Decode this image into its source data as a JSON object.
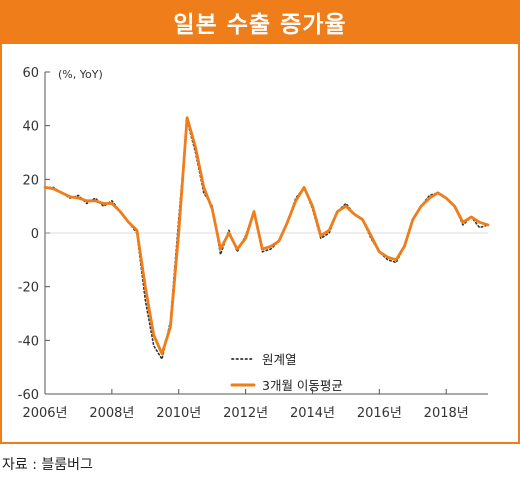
{
  "title": "일본 수출 증가율",
  "source": "자료 : 블룸버그",
  "chart_data": {
    "type": "line",
    "unit": "(%, YoY)",
    "ylim": [
      -60,
      60
    ],
    "yticks": [
      60,
      40,
      20,
      0,
      -20,
      -40,
      -60
    ],
    "xlim": [
      2006.0,
      2019.25
    ],
    "xticks": [
      {
        "value": 2006,
        "label": "2006년"
      },
      {
        "value": 2008,
        "label": "2008년"
      },
      {
        "value": 2010,
        "label": "2010년"
      },
      {
        "value": 2012,
        "label": "2012년"
      },
      {
        "value": 2014,
        "label": "2014년"
      },
      {
        "value": 2016,
        "label": "2016년"
      },
      {
        "value": 2018,
        "label": "2018년"
      }
    ],
    "grid": false,
    "legend_position": "bottom-center",
    "series": [
      {
        "name": "원계열",
        "style": "dotted",
        "color": "#333333",
        "points": [
          [
            2006.0,
            17
          ],
          [
            2006.25,
            17
          ],
          [
            2006.5,
            15
          ],
          [
            2006.75,
            13
          ],
          [
            2007.0,
            14
          ],
          [
            2007.25,
            11
          ],
          [
            2007.5,
            13
          ],
          [
            2007.75,
            10
          ],
          [
            2008.0,
            12
          ],
          [
            2008.25,
            8
          ],
          [
            2008.5,
            4
          ],
          [
            2008.75,
            0
          ],
          [
            2009.0,
            -25
          ],
          [
            2009.25,
            -42
          ],
          [
            2009.5,
            -47
          ],
          [
            2009.75,
            -33
          ],
          [
            2010.0,
            5
          ],
          [
            2010.25,
            42
          ],
          [
            2010.5,
            30
          ],
          [
            2010.75,
            15
          ],
          [
            2011.0,
            10
          ],
          [
            2011.25,
            -8
          ],
          [
            2011.5,
            1
          ],
          [
            2011.75,
            -7
          ],
          [
            2012.0,
            -1
          ],
          [
            2012.25,
            8
          ],
          [
            2012.5,
            -7
          ],
          [
            2012.75,
            -6
          ],
          [
            2013.0,
            -3
          ],
          [
            2013.25,
            4
          ],
          [
            2013.5,
            13
          ],
          [
            2013.75,
            17
          ],
          [
            2014.0,
            9
          ],
          [
            2014.25,
            -2
          ],
          [
            2014.5,
            0
          ],
          [
            2014.75,
            8
          ],
          [
            2015.0,
            11
          ],
          [
            2015.25,
            7
          ],
          [
            2015.5,
            5
          ],
          [
            2015.75,
            -2
          ],
          [
            2016.0,
            -7
          ],
          [
            2016.25,
            -10
          ],
          [
            2016.5,
            -11
          ],
          [
            2016.75,
            -5
          ],
          [
            2017.0,
            5
          ],
          [
            2017.25,
            10
          ],
          [
            2017.5,
            14
          ],
          [
            2017.75,
            15
          ],
          [
            2018.0,
            13
          ],
          [
            2018.25,
            10
          ],
          [
            2018.5,
            3
          ],
          [
            2018.75,
            6
          ],
          [
            2019.0,
            2
          ],
          [
            2019.25,
            3
          ]
        ]
      },
      {
        "name": "3개월 이동평균",
        "style": "solid",
        "color": "#ef7d1a",
        "points": [
          [
            2006.0,
            17
          ],
          [
            2006.25,
            16.5
          ],
          [
            2006.5,
            15
          ],
          [
            2006.75,
            13.5
          ],
          [
            2007.0,
            13
          ],
          [
            2007.25,
            12
          ],
          [
            2007.5,
            12
          ],
          [
            2007.75,
            11
          ],
          [
            2008.0,
            11
          ],
          [
            2008.25,
            8
          ],
          [
            2008.5,
            4
          ],
          [
            2008.75,
            1
          ],
          [
            2009.0,
            -20
          ],
          [
            2009.25,
            -38
          ],
          [
            2009.5,
            -45
          ],
          [
            2009.75,
            -35
          ],
          [
            2010.0,
            0
          ],
          [
            2010.25,
            43
          ],
          [
            2010.5,
            32
          ],
          [
            2010.75,
            17
          ],
          [
            2011.0,
            9
          ],
          [
            2011.25,
            -6
          ],
          [
            2011.5,
            0
          ],
          [
            2011.75,
            -6
          ],
          [
            2012.0,
            -2
          ],
          [
            2012.25,
            8
          ],
          [
            2012.5,
            -6
          ],
          [
            2012.75,
            -5
          ],
          [
            2013.0,
            -3
          ],
          [
            2013.25,
            4
          ],
          [
            2013.5,
            12
          ],
          [
            2013.75,
            17
          ],
          [
            2014.0,
            10
          ],
          [
            2014.25,
            -1
          ],
          [
            2014.5,
            1
          ],
          [
            2014.75,
            8
          ],
          [
            2015.0,
            10
          ],
          [
            2015.25,
            7
          ],
          [
            2015.5,
            5
          ],
          [
            2015.75,
            -1
          ],
          [
            2016.0,
            -7
          ],
          [
            2016.25,
            -9
          ],
          [
            2016.5,
            -10
          ],
          [
            2016.75,
            -5
          ],
          [
            2017.0,
            5
          ],
          [
            2017.25,
            10
          ],
          [
            2017.5,
            13
          ],
          [
            2017.75,
            15
          ],
          [
            2018.0,
            13
          ],
          [
            2018.25,
            10
          ],
          [
            2018.5,
            4
          ],
          [
            2018.75,
            6
          ],
          [
            2019.0,
            4
          ],
          [
            2019.25,
            3
          ]
        ]
      }
    ]
  }
}
